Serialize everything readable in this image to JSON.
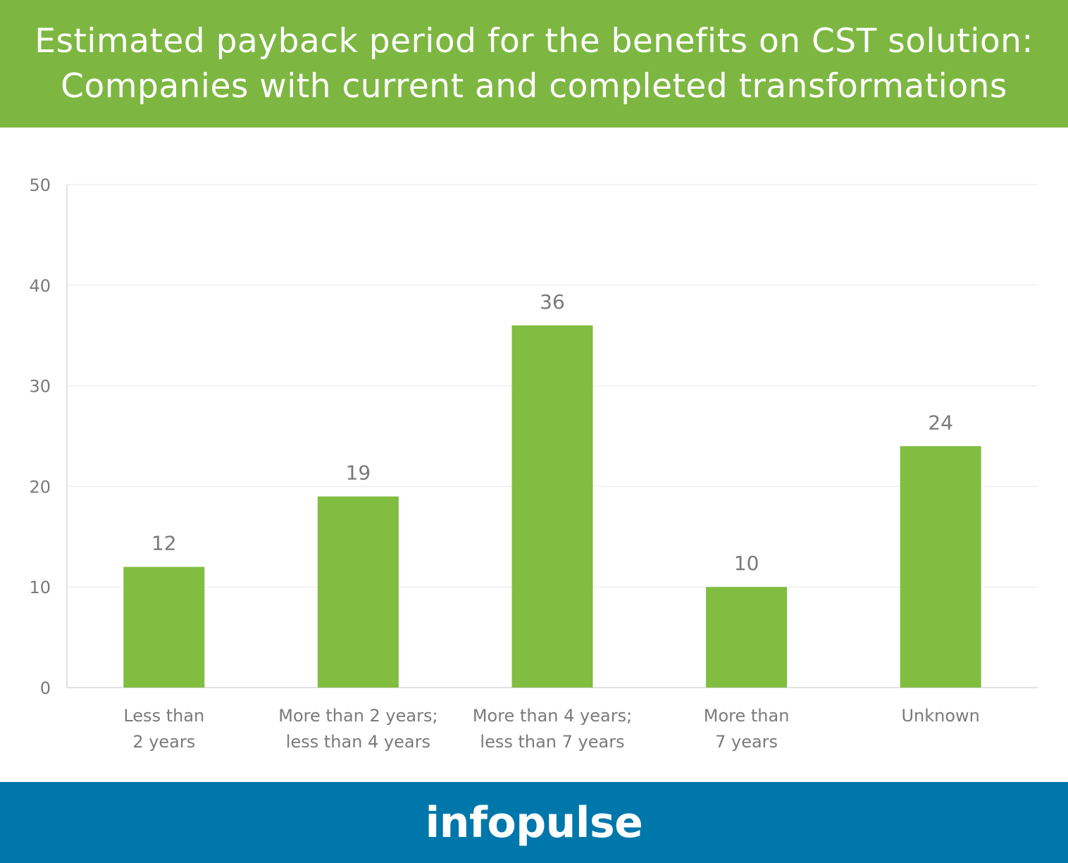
{
  "header": {
    "title_line1": "Estimated payback period for the benefits on CST solution:",
    "title_line2": "Companies with current and completed transformations"
  },
  "chart_data": {
    "type": "bar",
    "title": "Estimated payback period for the benefits on CST solution: Companies with current and completed transformations",
    "categories": [
      [
        "Less than",
        "2 years"
      ],
      [
        "More than 2 years;",
        "less than 4 years"
      ],
      [
        "More than 4 years;",
        "less than 7 years"
      ],
      [
        "More than",
        "7 years"
      ],
      [
        "Unknown"
      ]
    ],
    "values": [
      12,
      19,
      36,
      10,
      24
    ],
    "data_labels": [
      "12",
      "19",
      "36",
      "10",
      "24"
    ],
    "yticks": [
      0,
      10,
      20,
      30,
      40,
      50
    ],
    "ylim": [
      0,
      50
    ],
    "xlabel": "",
    "ylabel": "",
    "grid": true,
    "bar_color": "#80bd41",
    "label_color": "#7a7a7a"
  },
  "footer": {
    "brand": "infopulse"
  },
  "colors": {
    "header_bg": "#7db742",
    "footer_bg": "#0077aa"
  }
}
